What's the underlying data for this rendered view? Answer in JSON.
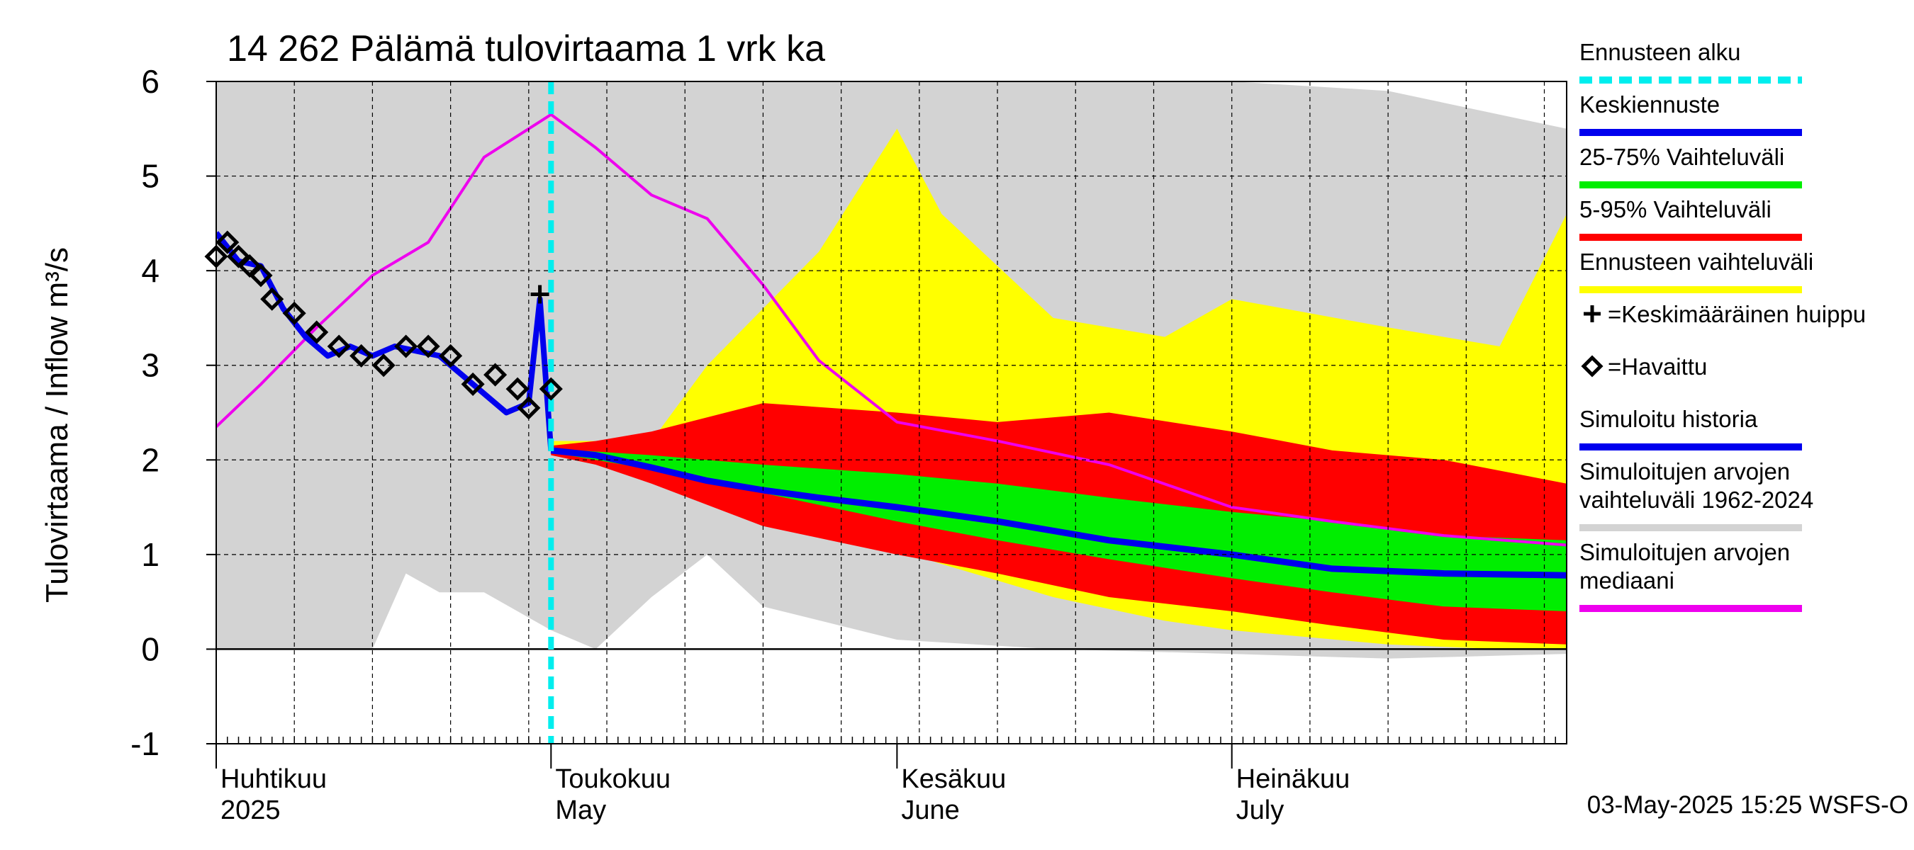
{
  "colors": {
    "sim_range": "#d3d3d3",
    "forecast_range": "#ffff00",
    "p5_95": "#ff0000",
    "p25_75": "#00ee00",
    "mean_forecast": "#0000ee",
    "sim_history": "#0000ee",
    "median": "#ee00ee",
    "forecast_start": "#00eeee",
    "grid": "#000000"
  },
  "chart_data": {
    "type": "area",
    "title": "14 262 Pälämä tulovirtaama 1 vrk ka",
    "ylabel": "Tulovirtaama / Inflow    m³/s",
    "ylim": [
      -1,
      6
    ],
    "yticks": [
      "-1",
      "0",
      "1",
      "2",
      "3",
      "4",
      "5",
      "6"
    ],
    "x_range": [
      "2025-04-01",
      "2025-07-31"
    ],
    "x_month_labels": [
      {
        "date": "2025-04-01",
        "fi": "Huhtikuu",
        "en": "2025"
      },
      {
        "date": "2025-05-01",
        "fi": "Toukokuu",
        "en": "May"
      },
      {
        "date": "2025-06-01",
        "fi": "Kesäkuu",
        "en": "June"
      },
      {
        "date": "2025-07-01",
        "fi": "Heinäkuu",
        "en": "July"
      }
    ],
    "forecast_start_date": "2025-05-01",
    "footer": "03-May-2025 15:25 WSFS-O",
    "legend_placement": "right",
    "legend": [
      {
        "label": "Ennusteen alku",
        "type": "dash",
        "color": "#00eeee"
      },
      {
        "label": "Keskiennuste",
        "type": "line",
        "color": "#0000ee"
      },
      {
        "label": "25-75% Vaihteluväli",
        "type": "line",
        "color": "#00ee00"
      },
      {
        "label": "5-95% Vaihteluväli",
        "type": "line",
        "color": "#ff0000"
      },
      {
        "label": "Ennusteen vaihteluväli",
        "type": "line",
        "color": "#ffff00"
      },
      {
        "label": "=Keskimääräinen huippu",
        "type": "plus",
        "color": "#000000"
      },
      {
        "label": "=Havaittu",
        "type": "diamond",
        "color": "#000000"
      },
      {
        "label": "Simuloitu historia",
        "type": "line",
        "color": "#0000ee"
      },
      {
        "label": "Simuloitujen arvojen vaihteluväli 1962-2024",
        "type": "line",
        "color": "#d3d3d3"
      },
      {
        "label": "Simuloitujen arvojen mediaani",
        "type": "line",
        "color": "#ee00ee"
      }
    ],
    "series": {
      "sim_range": {
        "x": [
          "2025-04-01",
          "2025-04-15",
          "2025-04-18",
          "2025-04-21",
          "2025-04-25",
          "2025-05-01",
          "2025-05-05",
          "2025-05-10",
          "2025-05-15",
          "2025-05-20",
          "2025-06-01",
          "2025-06-15",
          "2025-07-01",
          "2025-07-15",
          "2025-07-31"
        ],
        "lower": [
          0,
          0,
          0.8,
          0.6,
          0.6,
          0.2,
          0.0,
          0.55,
          1.0,
          0.45,
          0.1,
          0.0,
          -0.05,
          -0.1,
          -0.05
        ],
        "upper": [
          6,
          6,
          6,
          6,
          6,
          6,
          6,
          6,
          6,
          6,
          6,
          6,
          6,
          5.9,
          5.5
        ]
      },
      "forecast_range": {
        "x": [
          "2025-05-01",
          "2025-05-10",
          "2025-05-15",
          "2025-05-25",
          "2025-06-01",
          "2025-06-05",
          "2025-06-15",
          "2025-06-25",
          "2025-07-01",
          "2025-07-15",
          "2025-07-25",
          "2025-07-31"
        ],
        "lower": [
          2.1,
          1.95,
          1.7,
          1.3,
          1.05,
          0.9,
          0.55,
          0.3,
          0.2,
          0.05,
          0.0,
          0.0
        ],
        "upper": [
          2.2,
          2.2,
          3.0,
          4.2,
          5.5,
          4.6,
          3.5,
          3.3,
          3.7,
          3.4,
          3.2,
          4.6
        ]
      },
      "p5_95": {
        "x": [
          "2025-05-01",
          "2025-05-05",
          "2025-05-10",
          "2025-05-20",
          "2025-06-01",
          "2025-06-10",
          "2025-06-20",
          "2025-07-01",
          "2025-07-10",
          "2025-07-20",
          "2025-07-31"
        ],
        "lower": [
          2.05,
          1.95,
          1.75,
          1.3,
          1.0,
          0.8,
          0.55,
          0.4,
          0.25,
          0.1,
          0.05
        ],
        "upper": [
          2.15,
          2.2,
          2.3,
          2.6,
          2.5,
          2.4,
          2.5,
          2.3,
          2.1,
          2.0,
          1.75
        ]
      },
      "p25_75": {
        "x": [
          "2025-05-01",
          "2025-05-10",
          "2025-05-20",
          "2025-06-01",
          "2025-06-10",
          "2025-06-20",
          "2025-07-01",
          "2025-07-10",
          "2025-07-20",
          "2025-07-31"
        ],
        "lower": [
          2.08,
          1.9,
          1.65,
          1.35,
          1.15,
          0.95,
          0.75,
          0.6,
          0.45,
          0.4
        ],
        "upper": [
          2.12,
          2.05,
          1.95,
          1.85,
          1.75,
          1.6,
          1.45,
          1.35,
          1.2,
          1.15
        ]
      },
      "mean_forecast": {
        "x": [
          "2025-05-01",
          "2025-05-05",
          "2025-05-10",
          "2025-05-15",
          "2025-05-20",
          "2025-05-25",
          "2025-06-01",
          "2025-06-10",
          "2025-06-20",
          "2025-07-01",
          "2025-07-10",
          "2025-07-20",
          "2025-07-31"
        ],
        "y": [
          2.1,
          2.05,
          1.92,
          1.78,
          1.68,
          1.6,
          1.5,
          1.35,
          1.15,
          1.0,
          0.85,
          0.8,
          0.78
        ]
      },
      "sim_history": {
        "x": [
          "2025-04-01",
          "2025-04-03",
          "2025-04-05",
          "2025-04-07",
          "2025-04-09",
          "2025-04-11",
          "2025-04-13",
          "2025-04-15",
          "2025-04-17",
          "2025-04-19",
          "2025-04-21",
          "2025-04-23",
          "2025-04-25",
          "2025-04-27",
          "2025-04-29",
          "2025-04-30",
          "2025-05-01"
        ],
        "y": [
          4.4,
          4.1,
          4.05,
          3.6,
          3.3,
          3.1,
          3.2,
          3.1,
          3.2,
          3.15,
          3.1,
          2.9,
          2.7,
          2.5,
          2.6,
          3.7,
          2.1
        ]
      },
      "median": {
        "x": [
          "2025-04-01",
          "2025-04-05",
          "2025-04-10",
          "2025-04-15",
          "2025-04-20",
          "2025-04-25",
          "2025-05-01",
          "2025-05-05",
          "2025-05-10",
          "2025-05-15",
          "2025-05-20",
          "2025-05-25",
          "2025-06-01",
          "2025-06-10",
          "2025-06-20",
          "2025-07-01",
          "2025-07-10",
          "2025-07-20",
          "2025-07-31"
        ],
        "y": [
          2.35,
          2.8,
          3.4,
          3.95,
          4.3,
          5.2,
          5.65,
          5.3,
          4.8,
          4.55,
          3.85,
          3.05,
          2.4,
          2.2,
          1.95,
          1.5,
          1.35,
          1.2,
          1.1
        ]
      },
      "observed": {
        "x": [
          "2025-04-01",
          "2025-04-02",
          "2025-04-03",
          "2025-04-04",
          "2025-04-05",
          "2025-04-06",
          "2025-04-08",
          "2025-04-10",
          "2025-04-12",
          "2025-04-14",
          "2025-04-16",
          "2025-04-18",
          "2025-04-20",
          "2025-04-22",
          "2025-04-24",
          "2025-04-26",
          "2025-04-28",
          "2025-04-29",
          "2025-05-01"
        ],
        "y": [
          4.15,
          4.3,
          4.15,
          4.05,
          3.95,
          3.7,
          3.55,
          3.35,
          3.2,
          3.1,
          3.0,
          3.2,
          3.2,
          3.1,
          2.8,
          2.9,
          2.75,
          2.55,
          2.75
        ]
      },
      "avg_peak": {
        "x": "2025-04-30",
        "y": 3.75
      }
    }
  }
}
